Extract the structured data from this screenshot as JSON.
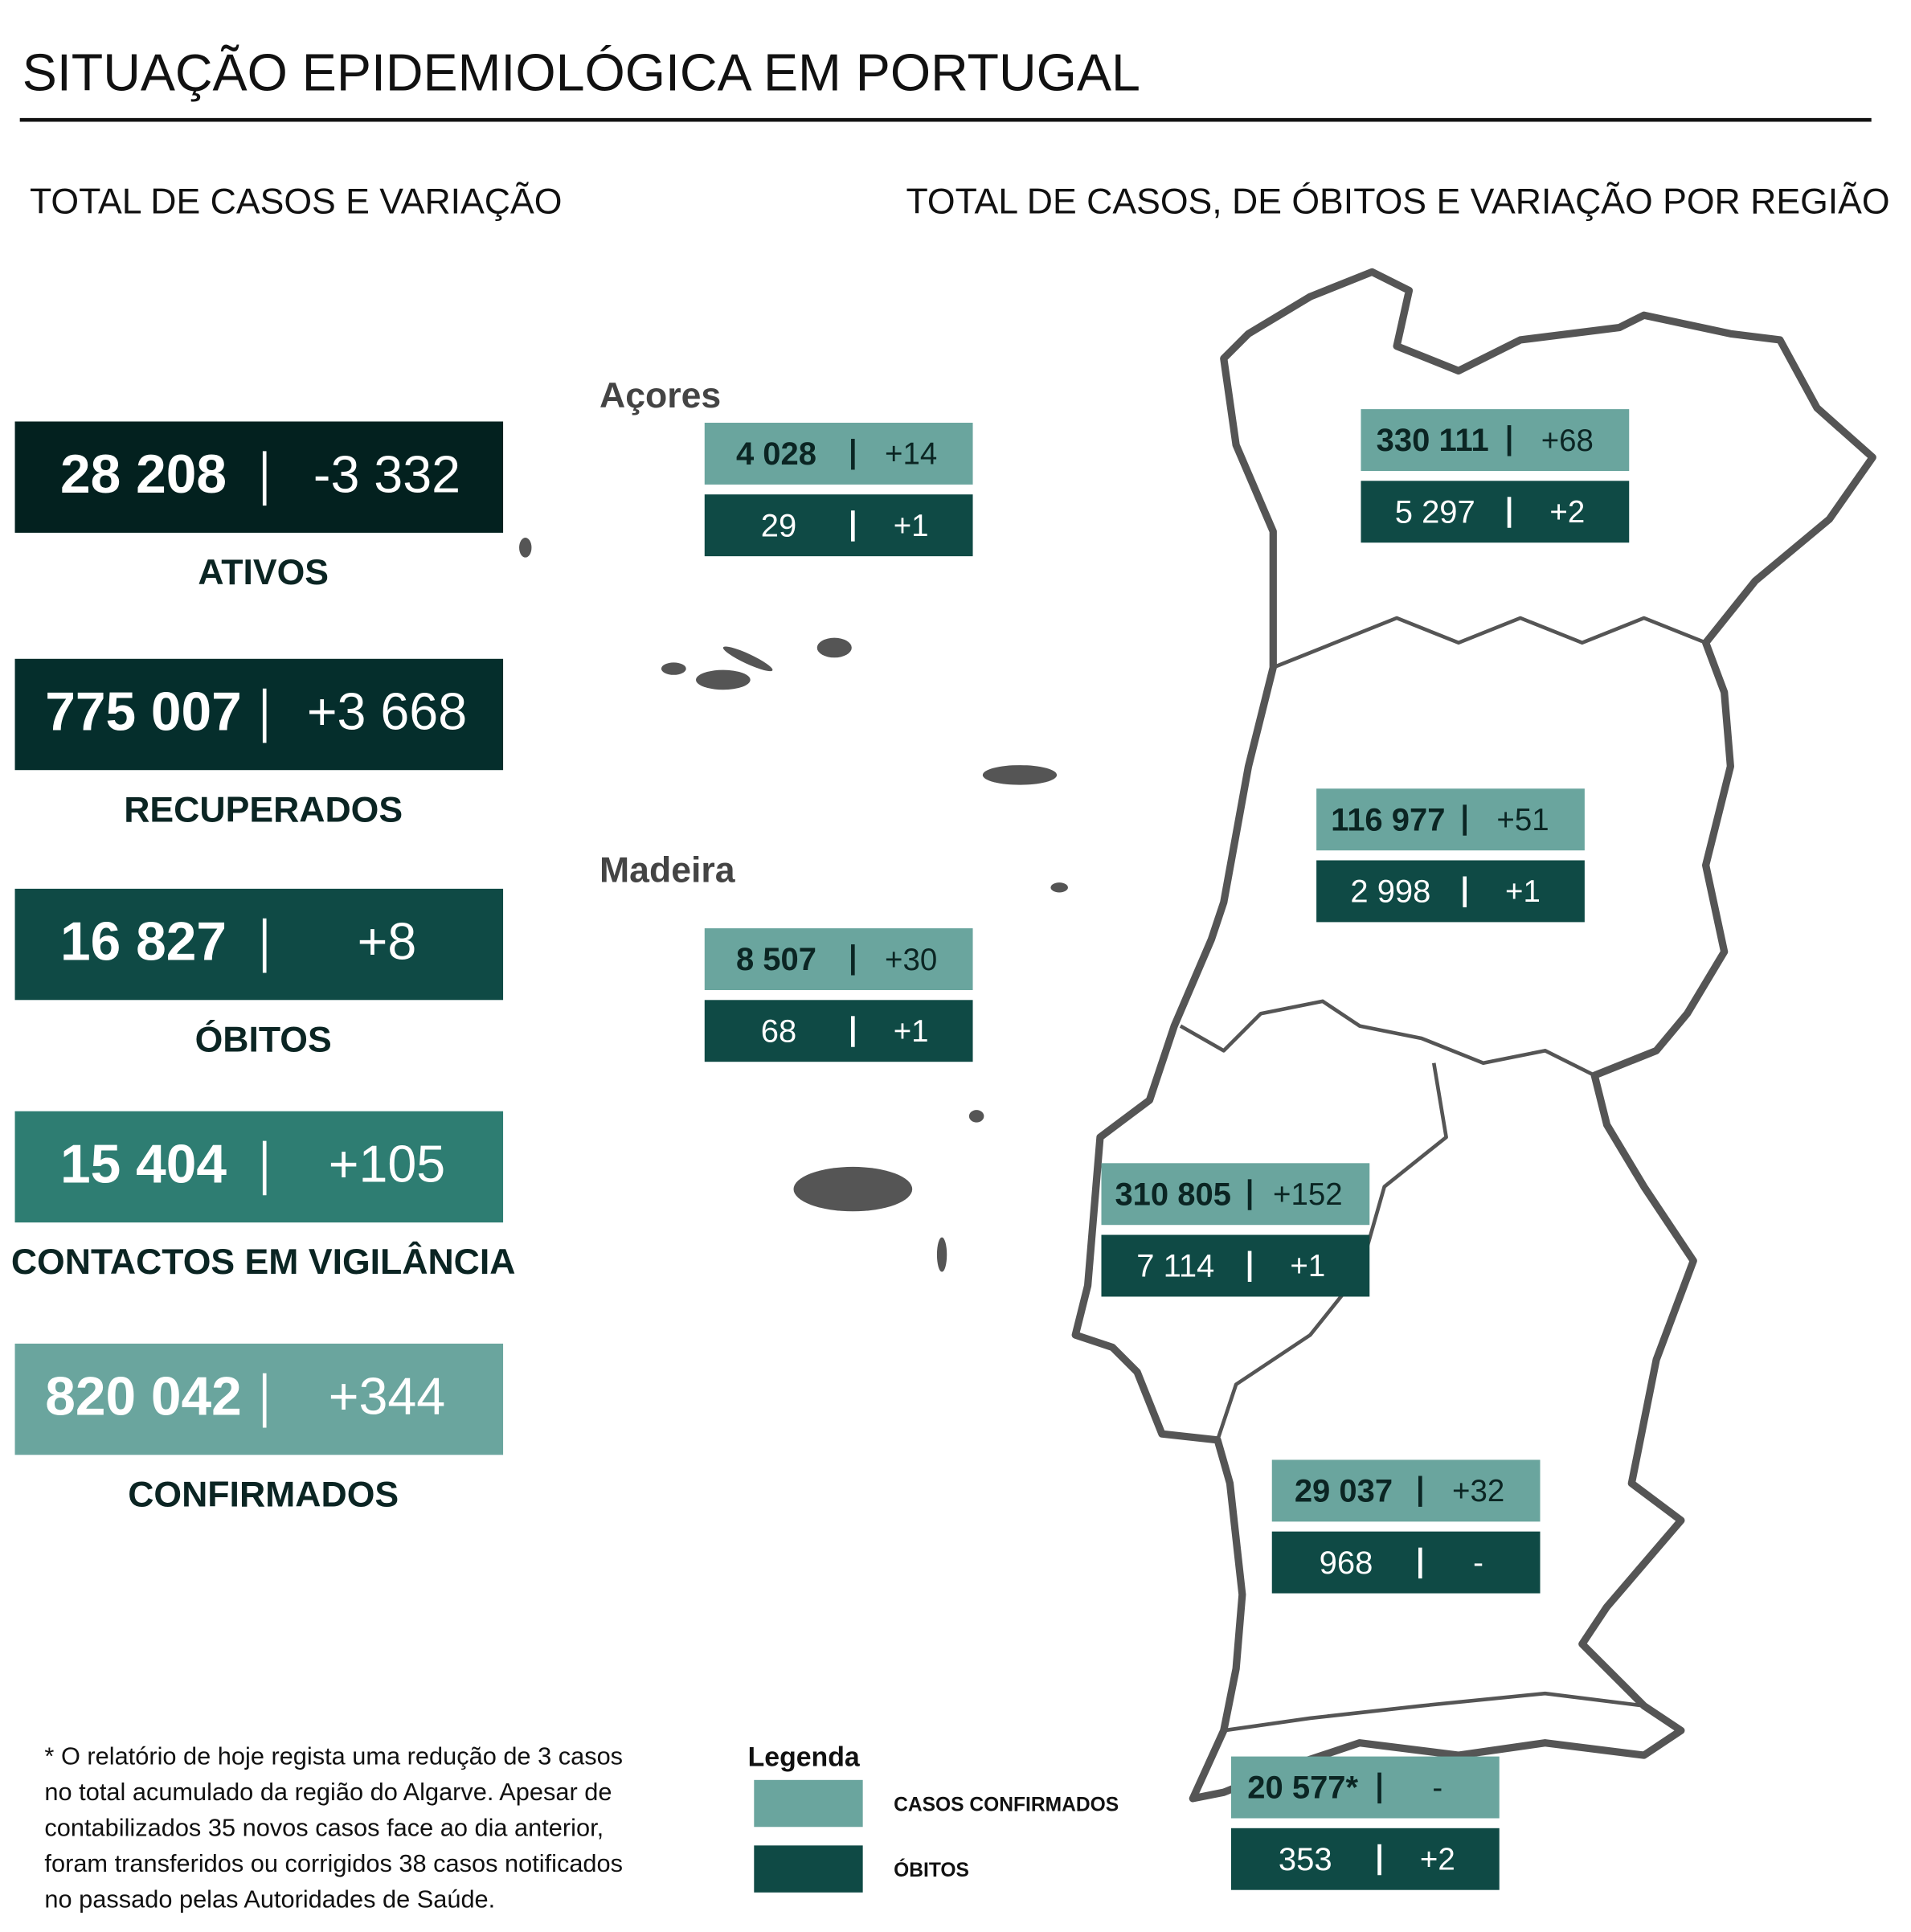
{
  "header": {
    "title": "SITUAÇÃO EPIDEMIOLÓGICA EM PORTUGAL"
  },
  "sections": {
    "left": "TOTAL DE CASOS E VARIAÇÃO",
    "right": "TOTAL DE CASOS, DE ÓBITOS E VARIAÇÃO POR REGIÃO"
  },
  "kpis": [
    {
      "value": "28 208",
      "change": "-3 332",
      "label": "ATIVOS"
    },
    {
      "value": "775 007",
      "change": "+3 668",
      "label": "RECUPERADOS"
    },
    {
      "value": "16 827",
      "change": "+8",
      "label": "ÓBITOS"
    },
    {
      "value": "15 404",
      "change": "+105",
      "label": "CONTACTOS EM VIGILÂNCIA"
    },
    {
      "value": "820 042",
      "change": "+344",
      "label": "CONFIRMADOS"
    }
  ],
  "regions": [
    {
      "label": "Açores",
      "cases": "4 028",
      "cases_change": "+14",
      "deaths": "29",
      "deaths_change": "+1"
    },
    {
      "label": "Madeira",
      "cases": "8 507",
      "cases_change": "+30",
      "deaths": "68",
      "deaths_change": "+1"
    },
    {
      "cases": "330 111",
      "cases_change": "+68",
      "deaths": "5 297",
      "deaths_change": "+2"
    },
    {
      "cases": "116 977",
      "cases_change": "+51",
      "deaths": "2 998",
      "deaths_change": "+1"
    },
    {
      "cases": "310 805",
      "cases_change": "+152",
      "deaths": "7 114",
      "deaths_change": "+1"
    },
    {
      "cases": "29 037",
      "cases_change": "+32",
      "deaths": "968",
      "deaths_change": "-"
    },
    {
      "cases": "20 577*",
      "cases_change": "-",
      "deaths": "353",
      "deaths_change": "+2"
    }
  ],
  "legend": {
    "title": "Legenda",
    "items": [
      "CASOS CONFIRMADOS",
      "ÓBITOS"
    ]
  },
  "footnote": [
    "* O relatório de hoje regista uma redução de 3 casos",
    "no total acumulado da região do Algarve. Apesar de",
    "contabilizados 35 novos casos face ao dia anterior,",
    "foram transferidos ou corrigidos 38 casos notificados",
    "no passado pelas Autoridades de Saúde."
  ]
}
